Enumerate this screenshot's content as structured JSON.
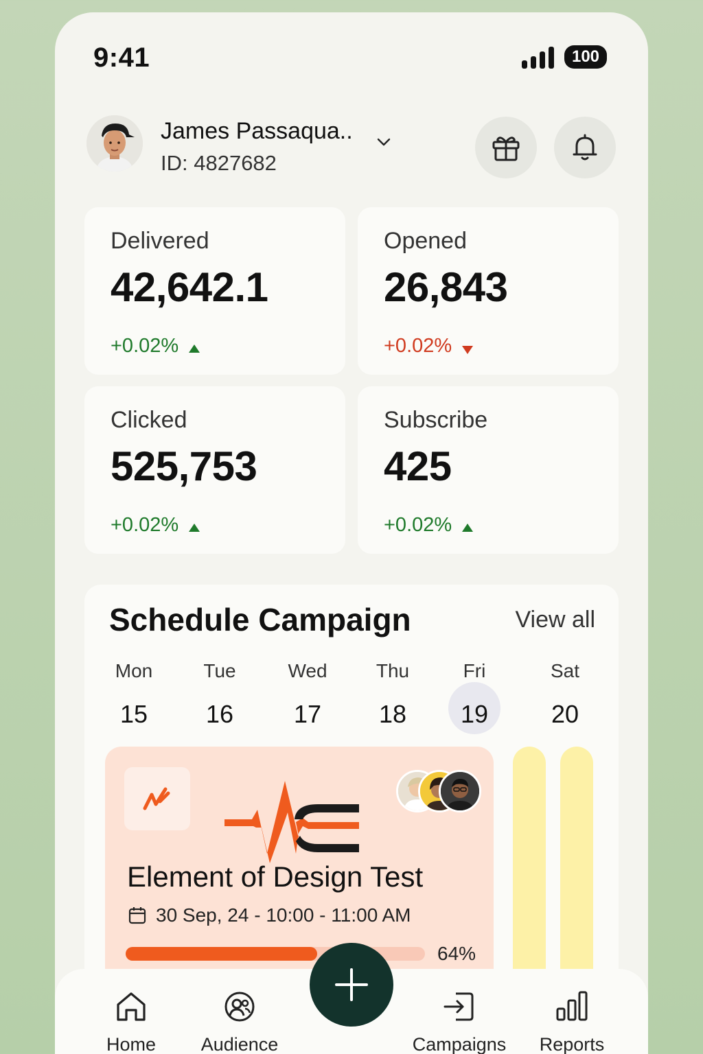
{
  "status_bar": {
    "time": "9:41",
    "battery": "100"
  },
  "header": {
    "user_name": "James Passaqua..",
    "user_id": "ID: 4827682"
  },
  "stats": [
    {
      "label": "Delivered",
      "value": "42,642.1",
      "change": "+0.02%",
      "trend": "up"
    },
    {
      "label": "Opened",
      "value": "26,843",
      "change": "+0.02%",
      "trend": "down"
    },
    {
      "label": "Clicked",
      "value": "525,753",
      "change": "+0.02%",
      "trend": "up"
    },
    {
      "label": "Subscribe",
      "value": "425",
      "change": "+0.02%",
      "trend": "up"
    }
  ],
  "schedule": {
    "title": "Schedule Campaign",
    "view_all": "View all",
    "days": [
      {
        "name": "Mon",
        "num": "15"
      },
      {
        "name": "Tue",
        "num": "16"
      },
      {
        "name": "Wed",
        "num": "17"
      },
      {
        "name": "Thu",
        "num": "18"
      },
      {
        "name": "Fri",
        "num": "19",
        "selected": true
      },
      {
        "name": "Sat",
        "num": "20"
      }
    ],
    "event": {
      "title": "Element of Design Test",
      "date": "30 Sep, 24 - 10:00 - 11:00 AM",
      "progress": 0.64,
      "progress_label": "64%"
    }
  },
  "nav": {
    "home": "Home",
    "audience": "Audience",
    "campaigns": "Campaigns",
    "reports": "Reports"
  },
  "colors": {
    "accent": "#ef5b1e",
    "up": "#1f7a2b",
    "down": "#d03b1f",
    "fab": "#13332c",
    "event_bg": "#fde2d5",
    "pill": "#fdf1a7"
  }
}
